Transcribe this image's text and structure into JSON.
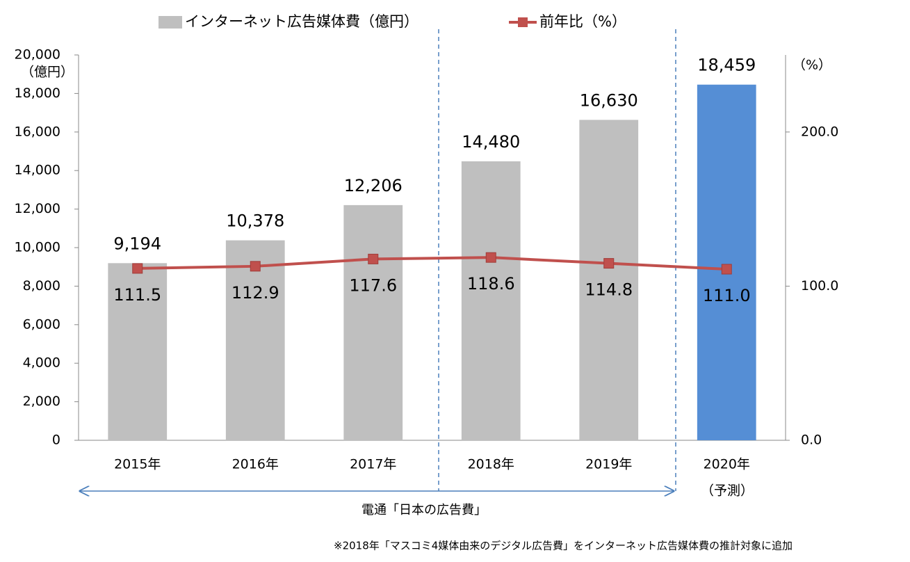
{
  "chart_data": {
    "type": "combo",
    "categories": [
      "2015年",
      "2016年",
      "2017年",
      "2018年",
      "2019年",
      "2020年"
    ],
    "forecast_note": "（予測）",
    "y_unit": "（億円）",
    "y2_unit": "（%）",
    "series": [
      {
        "name": "インターネット広告媒体費（億円）",
        "type": "bar",
        "colors": [
          "#bfbfbf",
          "#bfbfbf",
          "#bfbfbf",
          "#bfbfbf",
          "#bfbfbf",
          "#558ed5"
        ],
        "values": [
          9194,
          10378,
          12206,
          14480,
          16630,
          18459
        ],
        "value_labels": [
          "9,194",
          "10,378",
          "12,206",
          "14,480",
          "16,630",
          "18,459"
        ]
      },
      {
        "name": "前年比（%）",
        "type": "line",
        "axis": "y2",
        "color": "#c0504d",
        "values": [
          111.5,
          112.9,
          117.6,
          118.6,
          114.8,
          111.0
        ],
        "value_labels": [
          "111.5",
          "112.9",
          "117.6",
          "118.6",
          "114.8",
          "111.0"
        ]
      }
    ],
    "ylim": [
      0,
      20000
    ],
    "yticks": [
      0,
      {
        "value": 2000,
        "label": "2,000"
      },
      {
        "value": 4000,
        "label": "4,000"
      },
      {
        "value": 6000,
        "label": "6,000"
      },
      {
        "value": 8000,
        "label": "8,000"
      },
      {
        "value": 10000,
        "label": "10,000"
      },
      {
        "value": 12000,
        "label": "12,000"
      },
      {
        "value": 14000,
        "label": "14,000"
      },
      {
        "value": 16000,
        "label": "16,000"
      },
      {
        "value": 18000,
        "label": "18,000"
      },
      {
        "value": 20000,
        "label": "20,000"
      }
    ],
    "y2lim": [
      0,
      250
    ],
    "y2ticks": [
      {
        "value": 0,
        "label": "0.0"
      },
      {
        "value": 100,
        "label": "100.0"
      },
      {
        "value": 200,
        "label": "200.0"
      }
    ],
    "source_label": "電通「日本の広告費」",
    "footnote": "※2018年「マスコミ4媒体由来のデジタル広告費」をインターネット広告媒体費の推計対象に追加"
  }
}
